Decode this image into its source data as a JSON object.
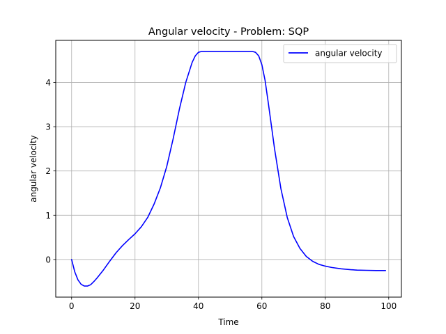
{
  "chart_data": {
    "type": "line",
    "title": "Angular velocity - Problem: SQP",
    "xlabel": "Time",
    "ylabel": "angular velocity",
    "xlim": [
      -5,
      104
    ],
    "ylim": [
      -0.85,
      4.95
    ],
    "xticks": [
      0,
      20,
      40,
      60,
      80,
      100
    ],
    "yticks": [
      0,
      1,
      2,
      3,
      4
    ],
    "grid": true,
    "legend_position": "top-right",
    "series": [
      {
        "name": "angular velocity",
        "color": "#0000ff",
        "x": [
          0,
          1,
          2,
          3,
          4,
          5,
          6,
          7,
          8,
          10,
          12,
          14,
          16,
          18,
          20,
          22,
          24,
          26,
          28,
          30,
          32,
          34,
          36,
          38,
          39,
          40,
          41,
          42,
          44,
          50,
          56,
          57,
          58,
          59,
          60,
          61,
          62,
          64,
          66,
          68,
          70,
          72,
          74,
          76,
          78,
          80,
          82,
          85,
          88,
          90,
          93,
          96,
          99
        ],
        "y": [
          0,
          -0.28,
          -0.46,
          -0.56,
          -0.6,
          -0.6,
          -0.57,
          -0.5,
          -0.42,
          -0.24,
          -0.04,
          0.15,
          0.31,
          0.45,
          0.58,
          0.74,
          0.95,
          1.25,
          1.62,
          2.1,
          2.72,
          3.4,
          4.0,
          4.45,
          4.6,
          4.68,
          4.7,
          4.7,
          4.7,
          4.7,
          4.7,
          4.7,
          4.68,
          4.6,
          4.4,
          4.05,
          3.55,
          2.5,
          1.6,
          0.95,
          0.52,
          0.25,
          0.07,
          -0.04,
          -0.11,
          -0.15,
          -0.18,
          -0.21,
          -0.23,
          -0.24,
          -0.245,
          -0.25,
          -0.25
        ]
      }
    ]
  }
}
